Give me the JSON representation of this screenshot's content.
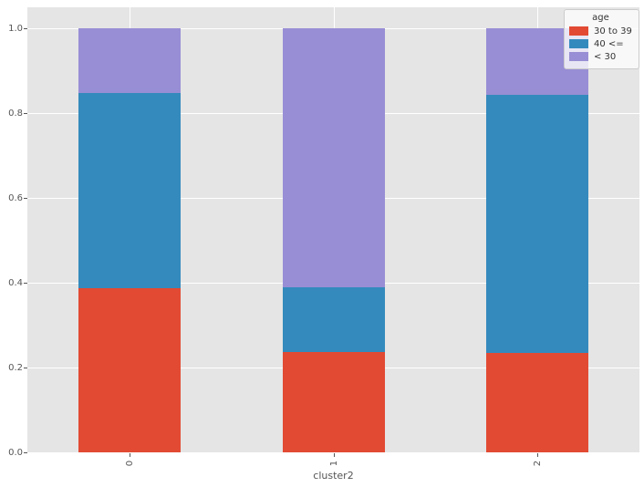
{
  "chart_data": {
    "type": "bar",
    "stacked": true,
    "normalized": true,
    "title": "",
    "xlabel": "cluster2",
    "ylabel": "",
    "categories": [
      "0",
      "1",
      "2"
    ],
    "series": [
      {
        "name": "30 to 39",
        "color": "#E24A33",
        "values": [
          0.387,
          0.237,
          0.234
        ]
      },
      {
        "name": "40 <=",
        "color": "#348ABD",
        "values": [
          0.46,
          0.152,
          0.609
        ]
      },
      {
        "name": "< 30",
        "color": "#988ED5",
        "values": [
          0.153,
          0.611,
          0.157
        ]
      }
    ],
    "legend": {
      "title": "age",
      "position": "upper right"
    },
    "y_ticks": [
      "0.0",
      "0.2",
      "0.4",
      "0.6",
      "0.8",
      "1.0"
    ],
    "y_tick_values": [
      0.0,
      0.2,
      0.4,
      0.6,
      0.8,
      1.0
    ],
    "ylim": [
      0,
      1.05
    ],
    "grid": true,
    "grid_lines": "horizontal and vertical, white",
    "style": {
      "name": "ggplot",
      "plot_background": "#E5E5E5",
      "figure_background": "#FFFFFF",
      "grid_color": "#FFFFFF",
      "tick_text_color": "#555555",
      "legend_text_color": "#333333",
      "x_tick_label_rotation_deg": 90
    }
  }
}
